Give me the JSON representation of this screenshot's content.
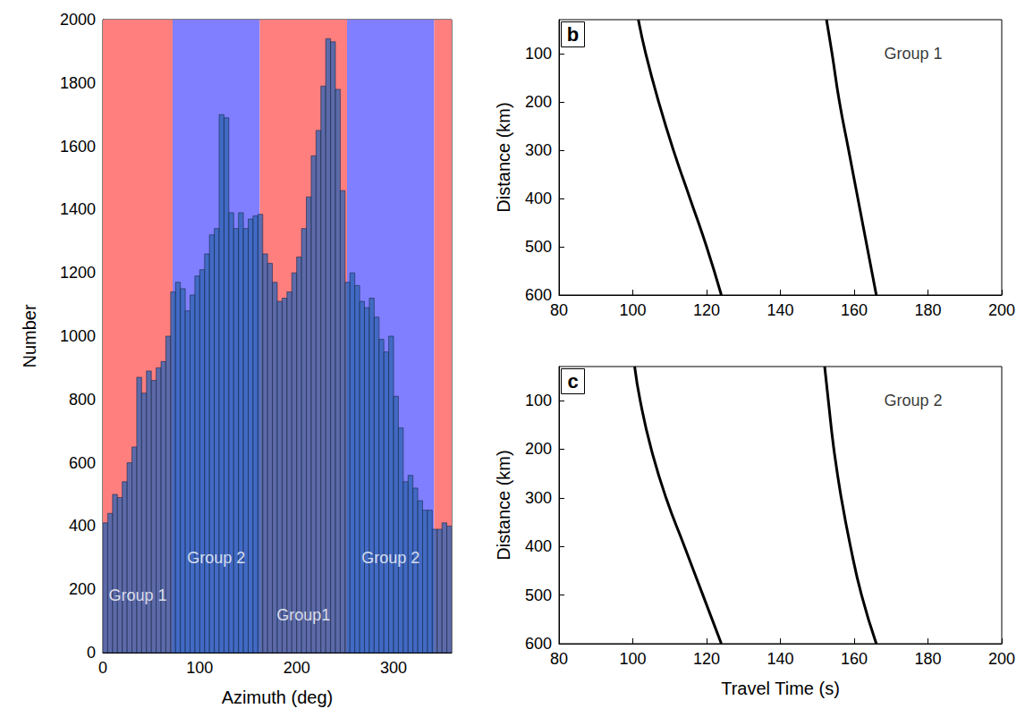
{
  "chart_data": [
    {
      "type": "histogram",
      "panel": "a",
      "xlabel": "Azimuth (deg)",
      "ylabel": "Number",
      "bins": [
        0,
        5,
        10,
        15,
        20,
        25,
        30,
        35,
        40,
        45,
        50,
        55,
        60,
        65,
        70,
        75,
        80,
        85,
        90,
        95,
        100,
        105,
        110,
        115,
        120,
        125,
        130,
        135,
        140,
        145,
        150,
        155,
        160,
        165,
        170,
        175,
        180,
        185,
        190,
        195,
        200,
        205,
        210,
        215,
        220,
        225,
        230,
        235,
        240,
        245,
        250,
        255,
        260,
        265,
        270,
        275,
        280,
        285,
        290,
        295,
        300,
        305,
        310,
        315,
        320,
        325,
        330,
        335,
        340,
        345,
        350,
        355,
        360
      ],
      "counts": [
        410,
        440,
        500,
        490,
        540,
        600,
        650,
        870,
        820,
        890,
        860,
        900,
        920,
        1000,
        1140,
        1170,
        1150,
        1080,
        1130,
        1190,
        1210,
        1260,
        1320,
        1340,
        1700,
        1690,
        1390,
        1340,
        1390,
        1340,
        1370,
        1380,
        1385,
        1260,
        1230,
        1170,
        1110,
        1120,
        1140,
        1200,
        1250,
        1340,
        1440,
        1570,
        1650,
        1790,
        1940,
        1930,
        1780,
        1460,
        1170,
        1200,
        1160,
        1110,
        1090,
        1120,
        1060,
        990,
        950,
        1000,
        810,
        710,
        540,
        560,
        520,
        480,
        450,
        450,
        390,
        390,
        410,
        400
      ],
      "color": "#2f64b5",
      "xlim": [
        0,
        360
      ],
      "xticks": [
        0,
        100,
        200,
        300
      ],
      "ylim": [
        0,
        2000
      ],
      "yticks": [
        0,
        200,
        400,
        600,
        800,
        1000,
        1200,
        1400,
        1600,
        1800,
        2000
      ],
      "bands": [
        {
          "from": 0,
          "to": 72,
          "color": "#ff7f7f"
        },
        {
          "from": 72,
          "to": 162,
          "color": "#7f7fff"
        },
        {
          "from": 162,
          "to": 252,
          "color": "#ff7f7f"
        },
        {
          "from": 252,
          "to": 342,
          "color": "#7f7fff"
        },
        {
          "from": 342,
          "to": 360,
          "color": "#ff7f7f"
        }
      ],
      "annotations": [
        {
          "text": "Group 1",
          "x": 36,
          "y": 180
        },
        {
          "text": "Group 2",
          "x": 117,
          "y": 300
        },
        {
          "text": "Group1",
          "x": 207,
          "y": 120
        },
        {
          "text": "Group 2",
          "x": 297,
          "y": 300
        }
      ],
      "grid": false
    },
    {
      "type": "line",
      "panel": "b",
      "ylabel": "Distance (km)",
      "xlim": [
        80,
        200
      ],
      "xticks": [
        80,
        100,
        120,
        140,
        160,
        180,
        200
      ],
      "ylim": [
        30,
        600
      ],
      "yticks": [
        100,
        200,
        300,
        400,
        500,
        600
      ],
      "series": [
        {
          "color": "#000000",
          "values": [
            [
              101.5,
              30
            ],
            [
              103.5,
              100
            ],
            [
              107,
              200
            ],
            [
              111,
              300
            ],
            [
              115.5,
              400
            ],
            [
              120,
              500
            ],
            [
              124,
              600
            ]
          ]
        },
        {
          "color": "#000000",
          "values": [
            [
              152.5,
              30
            ],
            [
              154,
              100
            ],
            [
              156,
              200
            ],
            [
              158.5,
              300
            ],
            [
              161,
              400
            ],
            [
              163.5,
              500
            ],
            [
              166,
              600
            ]
          ]
        }
      ],
      "annotations": [
        {
          "text": "Group 1",
          "x": 176,
          "y": 100
        }
      ],
      "grid": false
    },
    {
      "type": "line",
      "panel": "c",
      "xlabel": "Travel Time (s)",
      "ylabel": "Distance (km)",
      "xlim": [
        80,
        200
      ],
      "xticks": [
        80,
        100,
        120,
        140,
        160,
        180,
        200
      ],
      "ylim": [
        30,
        600
      ],
      "yticks": [
        100,
        200,
        300,
        400,
        500,
        600
      ],
      "series": [
        {
          "color": "#000000",
          "values": [
            [
              100.5,
              30
            ],
            [
              102,
              100
            ],
            [
              105,
              200
            ],
            [
              109,
              300
            ],
            [
              114,
              400
            ],
            [
              119,
              500
            ],
            [
              124,
              600
            ]
          ]
        },
        {
          "color": "#000000",
          "values": [
            [
              152,
              30
            ],
            [
              153,
              100
            ],
            [
              154.5,
              200
            ],
            [
              156.5,
              300
            ],
            [
              159,
              400
            ],
            [
              162,
              500
            ],
            [
              166,
              600
            ]
          ]
        }
      ],
      "annotations": [
        {
          "text": "Group 2",
          "x": 176,
          "y": 100
        }
      ],
      "grid": false
    }
  ]
}
